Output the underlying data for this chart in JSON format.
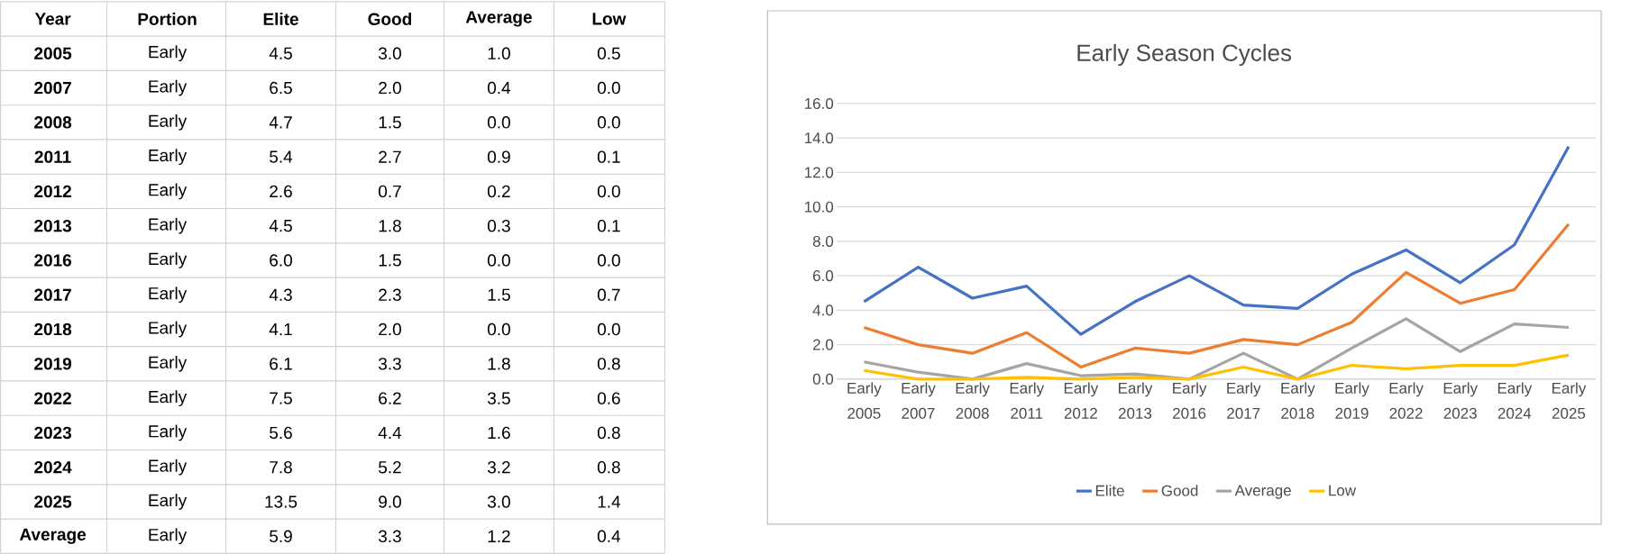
{
  "chart_data": {
    "type": "line",
    "title": "Early Season Cycles",
    "categories": [
      "2005",
      "2007",
      "2008",
      "2011",
      "2012",
      "2013",
      "2016",
      "2017",
      "2018",
      "2019",
      "2022",
      "2023",
      "2024",
      "2025"
    ],
    "series": [
      {
        "name": "Elite",
        "color": "#4472c4",
        "values": [
          4.5,
          6.5,
          4.7,
          5.4,
          2.6,
          4.5,
          6.0,
          4.3,
          4.1,
          6.1,
          7.5,
          5.6,
          7.8,
          13.5
        ]
      },
      {
        "name": "Good",
        "color": "#ed7d31",
        "values": [
          3.0,
          2.0,
          1.5,
          2.7,
          0.7,
          1.8,
          1.5,
          2.3,
          2.0,
          3.3,
          6.2,
          4.4,
          5.2,
          9.0
        ]
      },
      {
        "name": "Average",
        "color": "#a5a5a5",
        "values": [
          1.0,
          0.4,
          0.0,
          0.9,
          0.2,
          0.3,
          0.0,
          1.5,
          0.0,
          1.8,
          3.5,
          1.6,
          3.2,
          3.0
        ]
      },
      {
        "name": "Low",
        "color": "#ffc000",
        "values": [
          0.5,
          0.0,
          0.0,
          0.1,
          0.0,
          0.1,
          0.0,
          0.7,
          0.0,
          0.8,
          0.6,
          0.8,
          0.8,
          1.4
        ]
      }
    ],
    "ylim": [
      0,
      16
    ],
    "yticks": [
      {
        "value": 0,
        "label": "0.0"
      },
      {
        "value": 2,
        "label": "2.0"
      },
      {
        "value": 4,
        "label": "4.0"
      },
      {
        "value": 6,
        "label": "6.0"
      },
      {
        "value": 8,
        "label": "8.0"
      },
      {
        "value": 10,
        "label": "10.0"
      },
      {
        "value": 12,
        "label": "12.0"
      },
      {
        "value": 14,
        "label": "14.0"
      },
      {
        "value": 16,
        "label": "16.0"
      }
    ],
    "grid": "y",
    "legend": "bottom",
    "annotations": [
      "Year",
      "Portion",
      "Early",
      "Average",
      "5.9",
      "3.3",
      "1.2",
      "0.4",
      "4.5",
      "3.0",
      "1.0",
      "0.5",
      "6.5",
      "2.0",
      "0.4",
      "0.0",
      "4.7",
      "1.5",
      "0.0",
      "0.0",
      "5.4",
      "2.7",
      "0.9",
      "0.1",
      "2.6",
      "0.7",
      "0.2",
      "0.0",
      "4.5",
      "1.8",
      "0.3",
      "0.1",
      "6.0",
      "1.5",
      "0.0",
      "0.0",
      "4.3",
      "2.3",
      "1.5",
      "0.7",
      "4.1",
      "2.0",
      "0.0",
      "0.0",
      "6.1",
      "3.3",
      "1.8",
      "0.8",
      "7.5",
      "6.2",
      "3.5",
      "0.6",
      "5.6",
      "4.4",
      "1.6",
      "0.8",
      "7.8",
      "5.2",
      "3.2",
      "0.8",
      "13.5",
      "9.0",
      "3.0",
      "1.4"
    ]
  }
}
